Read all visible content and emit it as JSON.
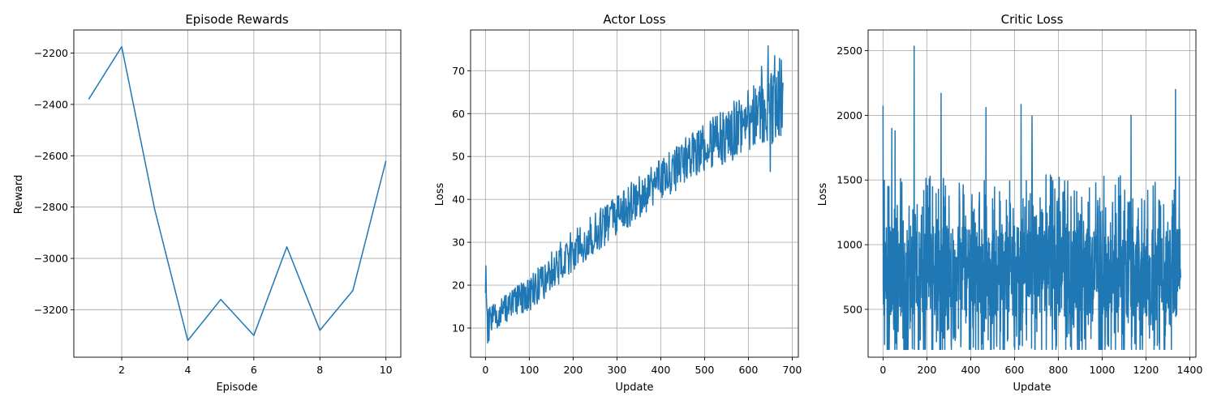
{
  "figure": {
    "colors": {
      "series": "#1f77b4",
      "grid": "#b0b0b0",
      "background": "#ffffff"
    }
  },
  "chart_data": [
    {
      "type": "line",
      "title": "Episode Rewards",
      "xlabel": "Episode",
      "ylabel": "Reward",
      "xlim": [
        0.55,
        10.45
      ],
      "ylim": [
        -3385,
        -2110
      ],
      "xticks": [
        2,
        4,
        6,
        8,
        10
      ],
      "yticks": [
        -3200,
        -3000,
        -2800,
        -2600,
        -2400,
        -2200
      ],
      "grid": true,
      "x": [
        1,
        2,
        3,
        4,
        5,
        6,
        7,
        8,
        9,
        10
      ],
      "series": [
        {
          "values": [
            -2380,
            -2175,
            -2810,
            -3320,
            -3160,
            -3300,
            -2955,
            -3280,
            -3125,
            -2620
          ]
        }
      ]
    },
    {
      "type": "line",
      "title": "Actor Loss",
      "xlabel": "Update",
      "ylabel": "Loss",
      "xlim": [
        -34,
        714
      ],
      "ylim": [
        3.2,
        79.5
      ],
      "xticks": [
        0,
        100,
        200,
        300,
        400,
        500,
        600,
        700
      ],
      "yticks": [
        10,
        20,
        30,
        40,
        50,
        60,
        70
      ],
      "grid": true,
      "generated": {
        "count": 680,
        "trend": [
          [
            0,
            17.5
          ],
          [
            10,
            12
          ],
          [
            100,
            18
          ],
          [
            200,
            28
          ],
          [
            300,
            36
          ],
          [
            400,
            45
          ],
          [
            500,
            52
          ],
          [
            600,
            58
          ],
          [
            679,
            64
          ]
        ],
        "noise": [
          [
            0,
            2
          ],
          [
            150,
            3.5
          ],
          [
            300,
            3.5
          ],
          [
            500,
            4
          ],
          [
            600,
            5.5
          ],
          [
            679,
            7
          ]
        ],
        "spikes": [
          [
            1,
            24.5
          ],
          [
            5,
            6.5
          ],
          [
            8,
            7
          ],
          [
            630,
            71
          ],
          [
            645,
            75.8
          ],
          [
            650,
            46.5
          ],
          [
            660,
            73.5
          ],
          [
            675,
            72.5
          ]
        ]
      }
    },
    {
      "type": "line",
      "title": "Critic Loss",
      "xlabel": "Update",
      "ylabel": "Loss",
      "xlim": [
        -68,
        1428
      ],
      "ylim": [
        130,
        2660
      ],
      "xticks": [
        0,
        200,
        400,
        600,
        800,
        1000,
        1200,
        1400
      ],
      "yticks": [
        500,
        1000,
        1500,
        2000,
        2500
      ],
      "grid": true,
      "generated": {
        "count": 1360,
        "base": 790,
        "range": [
          190,
          1700
        ],
        "spikes": [
          [
            0,
            2075
          ],
          [
            40,
            1900
          ],
          [
            55,
            1880
          ],
          [
            142,
            2535
          ],
          [
            265,
            2170
          ],
          [
            470,
            2060
          ],
          [
            630,
            2085
          ],
          [
            680,
            1995
          ],
          [
            1132,
            2000
          ],
          [
            1335,
            2200
          ]
        ]
      }
    }
  ]
}
